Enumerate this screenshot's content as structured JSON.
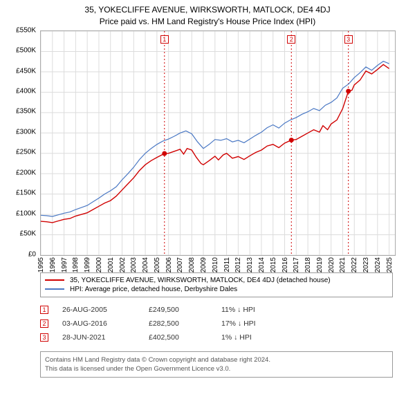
{
  "title_line1": "35, YOKECLIFFE AVENUE, WIRKSWORTH, MATLOCK, DE4 4DJ",
  "title_line2": "Price paid vs. HM Land Registry's House Price Index (HPI)",
  "chart": {
    "type": "line",
    "background_color": "#ffffff",
    "grid_color": "#dcdcdc",
    "axis_color": "#aaaaaa",
    "x_range": [
      1995,
      2025.5
    ],
    "y_range": [
      0,
      550000
    ],
    "y_ticks": [
      {
        "v": 0,
        "label": "£0"
      },
      {
        "v": 50000,
        "label": "£50K"
      },
      {
        "v": 100000,
        "label": "£100K"
      },
      {
        "v": 150000,
        "label": "£150K"
      },
      {
        "v": 200000,
        "label": "£200K"
      },
      {
        "v": 250000,
        "label": "£250K"
      },
      {
        "v": 300000,
        "label": "£300K"
      },
      {
        "v": 350000,
        "label": "£350K"
      },
      {
        "v": 400000,
        "label": "£400K"
      },
      {
        "v": 450000,
        "label": "£450K"
      },
      {
        "v": 500000,
        "label": "£500K"
      },
      {
        "v": 550000,
        "label": "£550K"
      }
    ],
    "x_ticks": [
      1995,
      1996,
      1997,
      1998,
      1999,
      2000,
      2001,
      2002,
      2003,
      2004,
      2005,
      2006,
      2007,
      2008,
      2009,
      2010,
      2011,
      2012,
      2013,
      2014,
      2015,
      2016,
      2017,
      2018,
      2019,
      2020,
      2021,
      2022,
      2023,
      2024,
      2025
    ],
    "tick_fontsize": 10,
    "series": [
      {
        "name": "35, YOKECLIFFE AVENUE, WIRKSWORTH, MATLOCK, DE4 4DJ (detached house)",
        "color": "#d00000",
        "width": 1.4,
        "data": [
          [
            1995,
            83000
          ],
          [
            1995.5,
            82000
          ],
          [
            1996,
            80000
          ],
          [
            1996.5,
            84000
          ],
          [
            1997,
            88000
          ],
          [
            1997.5,
            90000
          ],
          [
            1998,
            96000
          ],
          [
            1998.5,
            100000
          ],
          [
            1999,
            104000
          ],
          [
            1999.5,
            112000
          ],
          [
            2000,
            120000
          ],
          [
            2000.5,
            128000
          ],
          [
            2001,
            134000
          ],
          [
            2001.5,
            145000
          ],
          [
            2002,
            160000
          ],
          [
            2002.5,
            175000
          ],
          [
            2003,
            190000
          ],
          [
            2003.5,
            208000
          ],
          [
            2004,
            222000
          ],
          [
            2004.5,
            232000
          ],
          [
            2005,
            240000
          ],
          [
            2005.65,
            249500
          ],
          [
            2006,
            250000
          ],
          [
            2006.5,
            255000
          ],
          [
            2007,
            260000
          ],
          [
            2007.3,
            248000
          ],
          [
            2007.6,
            262000
          ],
          [
            2008,
            258000
          ],
          [
            2008.4,
            240000
          ],
          [
            2008.8,
            225000
          ],
          [
            2009,
            222000
          ],
          [
            2009.5,
            232000
          ],
          [
            2010,
            243000
          ],
          [
            2010.3,
            234000
          ],
          [
            2010.7,
            246000
          ],
          [
            2011,
            250000
          ],
          [
            2011.5,
            238000
          ],
          [
            2012,
            242000
          ],
          [
            2012.5,
            235000
          ],
          [
            2013,
            244000
          ],
          [
            2013.5,
            252000
          ],
          [
            2014,
            258000
          ],
          [
            2014.5,
            268000
          ],
          [
            2015,
            272000
          ],
          [
            2015.5,
            264000
          ],
          [
            2016,
            275000
          ],
          [
            2016.58,
            282500
          ],
          [
            2017,
            284000
          ],
          [
            2017.5,
            292000
          ],
          [
            2018,
            300000
          ],
          [
            2018.5,
            308000
          ],
          [
            2019,
            302000
          ],
          [
            2019.3,
            318000
          ],
          [
            2019.7,
            308000
          ],
          [
            2020,
            322000
          ],
          [
            2020.5,
            332000
          ],
          [
            2021,
            360000
          ],
          [
            2021.49,
            402500
          ],
          [
            2021.8,
            405000
          ],
          [
            2022,
            418000
          ],
          [
            2022.5,
            430000
          ],
          [
            2023,
            452000
          ],
          [
            2023.5,
            445000
          ],
          [
            2024,
            456000
          ],
          [
            2024.5,
            468000
          ],
          [
            2025,
            458000
          ]
        ]
      },
      {
        "name": "HPI: Average price, detached house, Derbyshire Dales",
        "color": "#4a78c4",
        "width": 1.2,
        "data": [
          [
            1995,
            98000
          ],
          [
            1995.5,
            97000
          ],
          [
            1996,
            95000
          ],
          [
            1996.5,
            99000
          ],
          [
            1997,
            103000
          ],
          [
            1997.5,
            106000
          ],
          [
            1998,
            112000
          ],
          [
            1998.5,
            117000
          ],
          [
            1999,
            122000
          ],
          [
            1999.5,
            131000
          ],
          [
            2000,
            140000
          ],
          [
            2000.5,
            150000
          ],
          [
            2001,
            158000
          ],
          [
            2001.5,
            168000
          ],
          [
            2002,
            185000
          ],
          [
            2002.5,
            200000
          ],
          [
            2003,
            216000
          ],
          [
            2003.5,
            235000
          ],
          [
            2004,
            250000
          ],
          [
            2004.5,
            262000
          ],
          [
            2005,
            272000
          ],
          [
            2005.5,
            280000
          ],
          [
            2006,
            285000
          ],
          [
            2006.5,
            292000
          ],
          [
            2007,
            300000
          ],
          [
            2007.5,
            305000
          ],
          [
            2008,
            298000
          ],
          [
            2008.5,
            278000
          ],
          [
            2009,
            262000
          ],
          [
            2009.5,
            272000
          ],
          [
            2010,
            284000
          ],
          [
            2010.5,
            282000
          ],
          [
            2011,
            286000
          ],
          [
            2011.5,
            278000
          ],
          [
            2012,
            282000
          ],
          [
            2012.5,
            276000
          ],
          [
            2013,
            285000
          ],
          [
            2013.5,
            294000
          ],
          [
            2014,
            302000
          ],
          [
            2014.5,
            313000
          ],
          [
            2015,
            320000
          ],
          [
            2015.5,
            312000
          ],
          [
            2016,
            324000
          ],
          [
            2016.5,
            332000
          ],
          [
            2017,
            338000
          ],
          [
            2017.5,
            346000
          ],
          [
            2018,
            352000
          ],
          [
            2018.5,
            360000
          ],
          [
            2019,
            355000
          ],
          [
            2019.5,
            368000
          ],
          [
            2020,
            375000
          ],
          [
            2020.5,
            386000
          ],
          [
            2021,
            410000
          ],
          [
            2021.5,
            420000
          ],
          [
            2022,
            436000
          ],
          [
            2022.5,
            448000
          ],
          [
            2023,
            462000
          ],
          [
            2023.5,
            454000
          ],
          [
            2024,
            466000
          ],
          [
            2024.5,
            476000
          ],
          [
            2025,
            470000
          ]
        ]
      }
    ],
    "markers": [
      {
        "n": "1",
        "x": 2005.65,
        "y": 249500,
        "vline_color": "#d00000",
        "vline_dash": "2,3"
      },
      {
        "n": "2",
        "x": 2016.58,
        "y": 282500,
        "vline_color": "#d00000",
        "vline_dash": "2,3"
      },
      {
        "n": "3",
        "x": 2021.49,
        "y": 402500,
        "vline_color": "#d00000",
        "vline_dash": "2,3"
      }
    ]
  },
  "legend": {
    "border_color": "#999999",
    "fontsize": 10,
    "rows": [
      {
        "color": "#d00000",
        "label": "35, YOKECLIFFE AVENUE, WIRKSWORTH, MATLOCK, DE4 4DJ (detached house)"
      },
      {
        "color": "#4a78c4",
        "label": "HPI: Average price, detached house, Derbyshire Dales"
      }
    ]
  },
  "sales": [
    {
      "n": "1",
      "date": "26-AUG-2005",
      "price": "£249,500",
      "delta": "11% ↓ HPI"
    },
    {
      "n": "2",
      "date": "03-AUG-2016",
      "price": "£282,500",
      "delta": "17% ↓ HPI"
    },
    {
      "n": "3",
      "date": "28-JUN-2021",
      "price": "£402,500",
      "delta": "1% ↓ HPI"
    }
  ],
  "footer_line1": "Contains HM Land Registry data © Crown copyright and database right 2024.",
  "footer_line2": "This data is licensed under the Open Government Licence v3.0."
}
